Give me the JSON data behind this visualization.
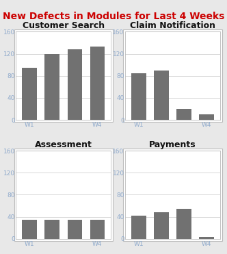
{
  "title": "New Defects in Modules for Last 4 Weeks",
  "title_color": "#CC0000",
  "title_fontsize": 10,
  "background_color": "#E8E8E8",
  "panel_bg": "#FFFFFF",
  "bar_color": "#717171",
  "subplots": [
    {
      "title": "Customer Search",
      "values": [
        95,
        120,
        128,
        133
      ],
      "ylim": [
        0,
        160
      ],
      "yticks": [
        0,
        40,
        80,
        120,
        160
      ]
    },
    {
      "title": "Claim Notification",
      "values": [
        85,
        90,
        20,
        10
      ],
      "ylim": [
        0,
        160
      ],
      "yticks": [
        0,
        40,
        80,
        120,
        160
      ]
    },
    {
      "title": "Assessment",
      "values": [
        35,
        35,
        35,
        35
      ],
      "ylim": [
        0,
        160
      ],
      "yticks": [
        0,
        40,
        80,
        120,
        160
      ]
    },
    {
      "title": "Payments",
      "values": [
        42,
        48,
        55,
        3
      ],
      "ylim": [
        0,
        160
      ],
      "yticks": [
        0,
        40,
        80,
        120,
        160
      ]
    }
  ],
  "xtick_labels": [
    "W1",
    "",
    "",
    "W4"
  ],
  "bar_width": 0.65,
  "tick_color": "#8FAACC",
  "tick_fontsize": 6.5,
  "subtitle_fontsize": 9,
  "grid_color": "#C8C8C8",
  "panel_border_color": "#BBBBBB"
}
